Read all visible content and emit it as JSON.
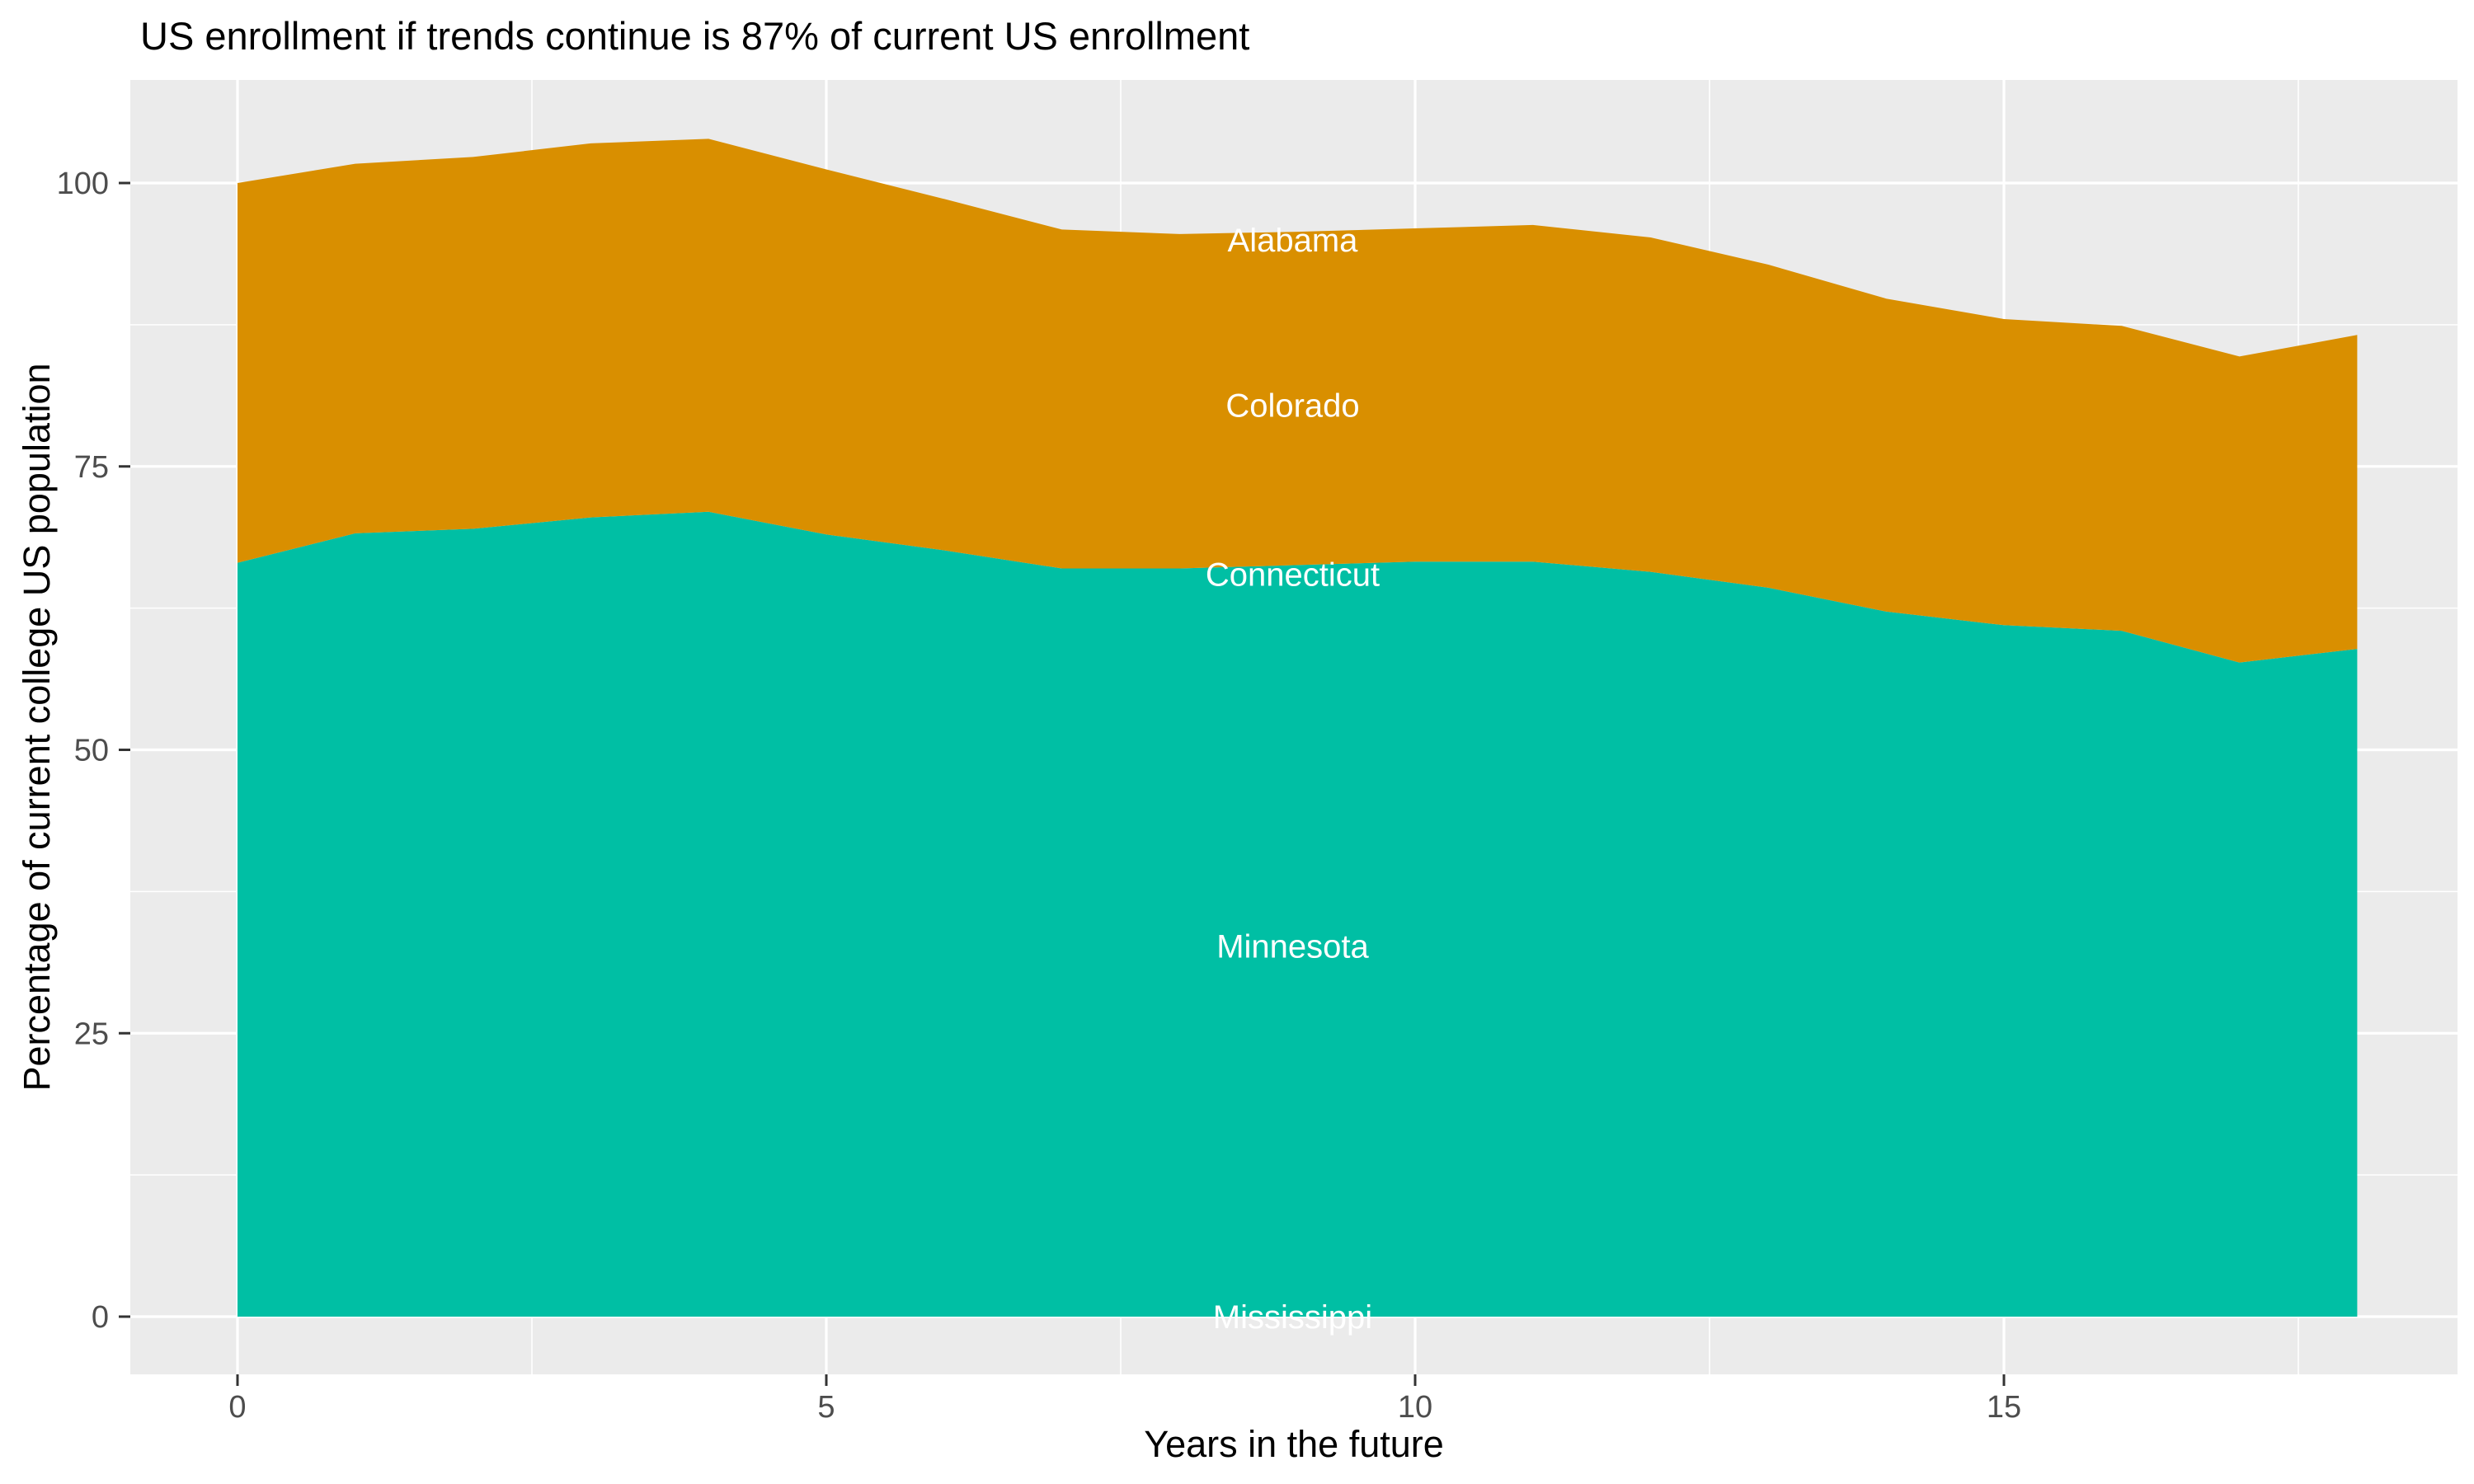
{
  "title": "US enrollment if trends continue is 87% of current US enrollment",
  "x_axis": {
    "title": "Years in the future",
    "ticks": [
      0,
      5,
      10,
      15
    ],
    "tick_labels": [
      "0",
      "5",
      "10",
      "15"
    ]
  },
  "y_axis": {
    "title": "Percentage of current college US population",
    "ticks": [
      0,
      25,
      50,
      75,
      100
    ],
    "tick_labels": [
      "0",
      "25",
      "50",
      "75",
      "100"
    ]
  },
  "style": {
    "panel_background": "#EBEBEB",
    "grid_color": "#FFFFFF",
    "tick_label_color": "#4D4D4D",
    "tick_mark_color": "#333333",
    "title_color": "#000000",
    "band_label_color": "#FFFFFF",
    "teal": "#00BFA4",
    "orange": "#D98F00"
  },
  "chart_data": {
    "type": "area",
    "stacked": true,
    "title": "US enrollment if trends continue is 87% of current US enrollment",
    "xlabel": "Years in the future",
    "ylabel": "Percentage of current college US population",
    "x": [
      0,
      1,
      2,
      3,
      4,
      5,
      6,
      7,
      8,
      9,
      10,
      11,
      12,
      13,
      14,
      15,
      16,
      17,
      18
    ],
    "xlim": [
      0,
      18
    ],
    "ylim": [
      0,
      104
    ],
    "grid": true,
    "legend": "none",
    "series": [
      {
        "name": "Mississippi",
        "color": null,
        "values": [
          0,
          0,
          0,
          0,
          0,
          0,
          0,
          0,
          0,
          0,
          0,
          0,
          0,
          0,
          0,
          0,
          0,
          0,
          0
        ]
      },
      {
        "name": "Minnesota",
        "color": "#00BFA4",
        "values": [
          66.5,
          69.1,
          69.5,
          70.5,
          71.0,
          69.0,
          67.6,
          66.0,
          66.0,
          66.3,
          66.6,
          66.6,
          65.7,
          64.3,
          62.2,
          61.0,
          60.5,
          57.7,
          58.9
        ]
      },
      {
        "name": "Connecticut",
        "color": null,
        "values": [
          0,
          0,
          0,
          0,
          0,
          0,
          0,
          0,
          0,
          0,
          0,
          0,
          0,
          0,
          0,
          0,
          0,
          0,
          0
        ]
      },
      {
        "name": "Colorado",
        "color": "#D98F00",
        "values": [
          33.5,
          32.6,
          32.8,
          33.0,
          32.9,
          32.2,
          31.0,
          29.9,
          29.5,
          29.4,
          29.4,
          29.7,
          29.5,
          28.5,
          27.6,
          27.0,
          26.9,
          27.0,
          27.7
        ]
      },
      {
        "name": "Alabama",
        "color": null,
        "values": [
          0,
          0,
          0,
          0,
          0,
          0,
          0,
          0,
          0,
          0,
          0,
          0,
          0,
          0,
          0,
          0,
          0,
          0,
          0
        ]
      }
    ],
    "stacked_totals": [
      100.0,
      101.7,
      102.3,
      103.5,
      103.9,
      101.2,
      98.6,
      95.9,
      95.5,
      95.7,
      96.0,
      96.3,
      95.2,
      92.8,
      89.8,
      88.0,
      87.4,
      84.7,
      86.6
    ],
    "band_labels": [
      {
        "label": "Alabama",
        "x": 8.96,
        "y": 95.0
      },
      {
        "label": "Colorado",
        "x": 8.96,
        "y": 80.4
      },
      {
        "label": "Connecticut",
        "x": 8.96,
        "y": 65.5
      },
      {
        "label": "Minnesota",
        "x": 8.96,
        "y": 32.7
      },
      {
        "label": "Mississippi",
        "x": 8.96,
        "y": 0.0
      }
    ]
  }
}
